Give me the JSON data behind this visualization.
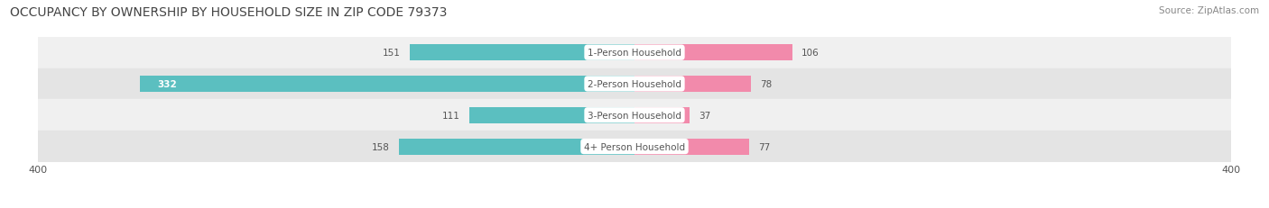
{
  "title": "OCCUPANCY BY OWNERSHIP BY HOUSEHOLD SIZE IN ZIP CODE 79373",
  "source": "Source: ZipAtlas.com",
  "categories": [
    "1-Person Household",
    "2-Person Household",
    "3-Person Household",
    "4+ Person Household"
  ],
  "owner_values": [
    151,
    332,
    111,
    158
  ],
  "renter_values": [
    106,
    78,
    37,
    77
  ],
  "owner_color": "#5bbfc0",
  "renter_color": "#f28aab",
  "row_bg_colors": [
    "#f0f0f0",
    "#e4e4e4"
  ],
  "axis_max": 400,
  "title_fontsize": 10.0,
  "source_fontsize": 7.5,
  "label_fontsize": 7.5,
  "legend_fontsize": 8.0,
  "tick_fontsize": 8.0,
  "background_color": "#ffffff",
  "bar_height": 0.52,
  "label_color": "#555555",
  "center_label_color": "#555555",
  "white_text_color": "#ffffff"
}
